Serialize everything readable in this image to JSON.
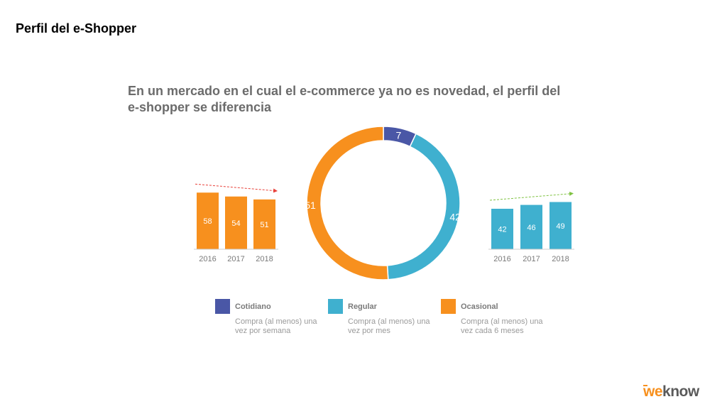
{
  "slide": {
    "title": "Perfil del e-Shopper"
  },
  "headline": {
    "line1": "En un mercado en el cual el e-commerce ya no es novedad, el perfil del",
    "line2": "e-shopper se diferencia"
  },
  "colors": {
    "cotidiano": "#4a57a6",
    "regular": "#3fb0cf",
    "ocasional": "#f7901e",
    "trend_down": "#e8413a",
    "trend_up": "#7fc241",
    "axis_text": "#7a7a7a",
    "axis_line": "#cccccc"
  },
  "legend": [
    {
      "key": "cotidiano",
      "name": "Cotidiano",
      "description": "Compra (al menos) una vez por semana"
    },
    {
      "key": "regular",
      "name": "Regular",
      "description": "Compra (al menos) una vez por mes"
    },
    {
      "key": "ocasional",
      "name": "Ocasional",
      "description": "Compra (al menos) una vez cada 6 meses"
    }
  ],
  "chart_data": [
    {
      "type": "bar",
      "categories": [
        "2016",
        "2017",
        "2018"
      ],
      "values": [
        58,
        54,
        51
      ],
      "color_key": "ocasional",
      "trend": "down"
    },
    {
      "type": "pie",
      "donut": true,
      "labels": [
        "Cotidiano",
        "Regular",
        "Ocasional"
      ],
      "values": [
        7,
        42,
        51
      ],
      "color_keys": [
        "cotidiano",
        "regular",
        "ocasional"
      ]
    },
    {
      "type": "bar",
      "categories": [
        "2016",
        "2017",
        "2018"
      ],
      "values": [
        42,
        46,
        49
      ],
      "color_key": "regular",
      "trend": "up"
    }
  ],
  "logo": {
    "part1": "we",
    "part2": "know"
  }
}
